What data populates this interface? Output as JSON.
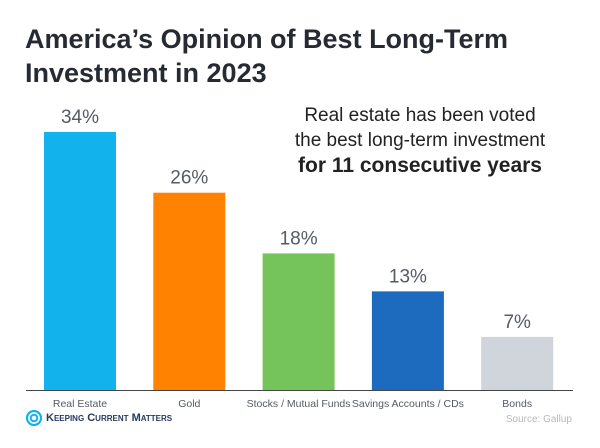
{
  "chart_data": {
    "type": "bar",
    "title": "America’s Opinion of Best Long-Term Investment in 2023",
    "categories": [
      "Real Estate",
      "Gold",
      "Stocks / Mutual Funds",
      "Savings Accounts / CDs",
      "Bonds"
    ],
    "values": [
      34,
      26,
      18,
      13,
      7
    ],
    "value_labels": [
      "34%",
      "26%",
      "18%",
      "13%",
      "7%"
    ],
    "colors": [
      "#12b2ec",
      "#ff8300",
      "#74c45b",
      "#1c6bbf",
      "#cfd5db"
    ],
    "unit": "%",
    "ylim": [
      0,
      34
    ],
    "grid": false,
    "legend": "none"
  },
  "annotation": {
    "line1": "Real estate has been voted",
    "line2": "the best long-term investment",
    "line3": "for 11 consecutive years"
  },
  "footer": {
    "logo_text": "Keeping Current Matters",
    "source": "Source: Gallup"
  }
}
